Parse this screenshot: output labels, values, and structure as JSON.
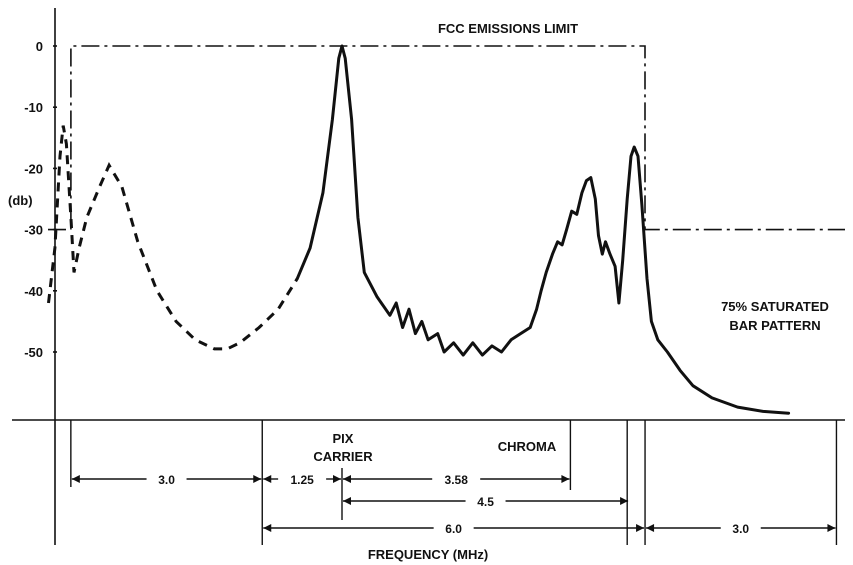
{
  "chart_data": {
    "type": "line",
    "title": "",
    "xlabel": "FREQUENCY (MHz)",
    "ylabel": "(db)",
    "ylim": [
      -60,
      5
    ],
    "yticks": [
      0,
      -10,
      -20,
      -30,
      -40,
      -50
    ],
    "ytick_labels": [
      "0",
      "-10",
      "-20",
      "-30",
      "-40",
      "-50"
    ],
    "x_unit": "MHz, relative to PIX CARRIER",
    "annotations": {
      "limit_label": "FCC EMISSIONS LIMIT",
      "pattern_label_1": "75% SATURATED",
      "pattern_label_2": "BAR PATTERN",
      "pix_label_1": "PIX",
      "pix_label_2": "CARRIER",
      "chroma_label": "CHROMA"
    },
    "dimensions": [
      {
        "label": "3.0",
        "from": -4.25,
        "to": -1.25
      },
      {
        "label": "1.25",
        "from": -1.25,
        "to": 0
      },
      {
        "label": "3.58",
        "from": 0,
        "to": 3.58
      },
      {
        "label": "4.5",
        "from": 0,
        "to": 4.5
      },
      {
        "label": "6.0",
        "from": -1.25,
        "to": 4.75
      },
      {
        "label": "3.0",
        "from": 4.75,
        "to": 7.75
      }
    ],
    "emissions_limit": [
      {
        "x": -4.25,
        "y": -30
      },
      {
        "x": -4.25,
        "y": 0
      },
      {
        "x": 4.75,
        "y": 0
      },
      {
        "x": 4.75,
        "y": -30
      },
      {
        "x": 7.75,
        "y": -30
      }
    ],
    "series": [
      {
        "style": "dashed",
        "points": [
          [
            -4.6,
            -42
          ],
          [
            -4.5,
            -33
          ],
          [
            -4.42,
            -18
          ],
          [
            -4.37,
            -13
          ],
          [
            -4.32,
            -16
          ],
          [
            -4.25,
            -28
          ],
          [
            -4.2,
            -37
          ],
          [
            -4.12,
            -33
          ],
          [
            -4.0,
            -28
          ],
          [
            -3.8,
            -23
          ],
          [
            -3.65,
            -19.5
          ],
          [
            -3.45,
            -23
          ],
          [
            -3.2,
            -32
          ],
          [
            -2.9,
            -40
          ],
          [
            -2.6,
            -45
          ],
          [
            -2.3,
            -48
          ],
          [
            -2.0,
            -49.5
          ],
          [
            -1.8,
            -49.5
          ],
          [
            -1.6,
            -48.5
          ],
          [
            -1.3,
            -46
          ],
          [
            -1.0,
            -43
          ],
          [
            -0.7,
            -38
          ]
        ]
      },
      {
        "style": "solid",
        "points": [
          [
            -0.7,
            -38
          ],
          [
            -0.5,
            -33
          ],
          [
            -0.3,
            -24
          ],
          [
            -0.15,
            -12
          ],
          [
            -0.05,
            -2
          ],
          [
            0.0,
            0
          ],
          [
            0.05,
            -2
          ],
          [
            0.15,
            -12
          ],
          [
            0.25,
            -28
          ],
          [
            0.35,
            -37
          ],
          [
            0.55,
            -41
          ],
          [
            0.75,
            -44
          ],
          [
            0.85,
            -42
          ],
          [
            0.95,
            -46
          ],
          [
            1.05,
            -43
          ],
          [
            1.15,
            -47
          ],
          [
            1.25,
            -45
          ],
          [
            1.35,
            -48
          ],
          [
            1.5,
            -47
          ],
          [
            1.6,
            -50
          ],
          [
            1.75,
            -48.5
          ],
          [
            1.9,
            -50.5
          ],
          [
            2.05,
            -48.5
          ],
          [
            2.2,
            -50.5
          ],
          [
            2.35,
            -49
          ],
          [
            2.5,
            -50
          ],
          [
            2.65,
            -48
          ],
          [
            2.8,
            -47
          ],
          [
            2.95,
            -46
          ],
          [
            3.05,
            -43
          ],
          [
            3.12,
            -40
          ],
          [
            3.2,
            -37
          ],
          [
            3.3,
            -34
          ],
          [
            3.38,
            -32
          ],
          [
            3.45,
            -32.5
          ],
          [
            3.52,
            -30
          ],
          [
            3.6,
            -27
          ],
          [
            3.68,
            -27.5
          ],
          [
            3.76,
            -24
          ],
          [
            3.83,
            -22
          ],
          [
            3.9,
            -21.5
          ],
          [
            3.97,
            -25
          ],
          [
            4.02,
            -31
          ],
          [
            4.08,
            -34
          ],
          [
            4.13,
            -32
          ],
          [
            4.2,
            -34
          ],
          [
            4.28,
            -36
          ],
          [
            4.34,
            -42
          ],
          [
            4.4,
            -35
          ],
          [
            4.47,
            -25
          ],
          [
            4.53,
            -18
          ],
          [
            4.58,
            -16.5
          ],
          [
            4.64,
            -18
          ],
          [
            4.7,
            -26
          ],
          [
            4.78,
            -38
          ],
          [
            4.85,
            -45
          ],
          [
            4.95,
            -48
          ],
          [
            5.1,
            -50
          ],
          [
            5.3,
            -53
          ],
          [
            5.5,
            -55.5
          ],
          [
            5.8,
            -57.5
          ],
          [
            6.2,
            -59
          ],
          [
            6.6,
            -59.7
          ],
          [
            7.0,
            -60
          ]
        ]
      }
    ]
  }
}
